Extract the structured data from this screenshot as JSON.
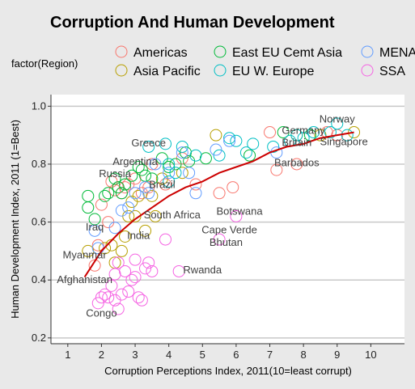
{
  "chart_data": {
    "type": "scatter",
    "title": "Corruption And Human Development",
    "xlabel": "Corruption Perceptions Index, 2011(10=least corrupt)",
    "ylabel": "Human Development Index, 2011 (1=Best)",
    "xlim": [
      0.5,
      11
    ],
    "ylim": [
      0.18,
      1.04
    ],
    "x_ticks": [
      1,
      2,
      3,
      4,
      5,
      6,
      7,
      8,
      9,
      10
    ],
    "y_ticks": [
      0.2,
      0.4,
      0.6,
      0.8,
      1.0
    ],
    "y_tick_labels": [
      "0.2",
      "0.4",
      "0.6",
      "0.8",
      "1.0"
    ],
    "grid": "horizontal",
    "legend": {
      "title": "factor(Region)",
      "placement": "top",
      "entries": [
        {
          "name": "Americas",
          "color": "#f8766d"
        },
        {
          "name": "Asia Pacific",
          "color": "#b79f00"
        },
        {
          "name": "East EU Cemt Asia",
          "color": "#00ba38"
        },
        {
          "name": "EU W. Europe",
          "color": "#00bfc4"
        },
        {
          "name": "MENA",
          "color": "#619cff"
        },
        {
          "name": "SSA",
          "color": "#f564e3"
        }
      ]
    },
    "trend_line": {
      "color": "#cc0000",
      "x": [
        1.5,
        2,
        2.5,
        3,
        3.5,
        4,
        4.5,
        5,
        5.5,
        6,
        6.5,
        7,
        7.5,
        8,
        8.5,
        9,
        9.5
      ],
      "y": [
        0.41,
        0.5,
        0.56,
        0.61,
        0.65,
        0.69,
        0.72,
        0.74,
        0.77,
        0.79,
        0.81,
        0.84,
        0.86,
        0.87,
        0.89,
        0.9,
        0.91
      ]
    },
    "series": [
      {
        "name": "Americas",
        "color": "#f8766d",
        "points": [
          [
            1.8,
            0.45
          ],
          [
            1.9,
            0.52
          ],
          [
            2.0,
            0.66
          ],
          [
            2.2,
            0.6
          ],
          [
            2.3,
            0.74
          ],
          [
            2.4,
            0.71
          ],
          [
            2.5,
            0.72
          ],
          [
            2.6,
            0.7
          ],
          [
            2.7,
            0.72
          ],
          [
            2.8,
            0.73
          ],
          [
            3.0,
            0.75
          ],
          [
            3.2,
            0.7
          ],
          [
            3.4,
            0.72
          ],
          [
            3.5,
            0.8
          ],
          [
            3.9,
            0.73
          ],
          [
            4.4,
            0.82
          ],
          [
            4.8,
            0.73
          ],
          [
            5.5,
            0.7
          ],
          [
            5.9,
            0.72
          ],
          [
            7.0,
            0.91
          ],
          [
            7.2,
            0.78
          ],
          [
            7.8,
            0.8
          ],
          [
            8.7,
            0.91
          ],
          [
            9.0,
            0.9
          ]
        ]
      },
      {
        "name": "Asia Pacific",
        "color": "#b79f00",
        "points": [
          [
            1.6,
            0.5
          ],
          [
            2.1,
            0.51
          ],
          [
            2.3,
            0.52
          ],
          [
            2.4,
            0.46
          ],
          [
            2.6,
            0.5
          ],
          [
            2.7,
            0.55
          ],
          [
            2.8,
            0.62
          ],
          [
            2.9,
            0.67
          ],
          [
            3.0,
            0.62
          ],
          [
            3.1,
            0.69
          ],
          [
            3.3,
            0.57
          ],
          [
            3.5,
            0.69
          ],
          [
            3.6,
            0.62
          ],
          [
            3.8,
            0.75
          ],
          [
            4.4,
            0.77
          ],
          [
            5.4,
            0.9
          ],
          [
            7.8,
            0.9
          ],
          [
            8.5,
            0.9
          ],
          [
            9.5,
            0.91
          ]
        ]
      },
      {
        "name": "East EU Cemt Asia",
        "color": "#00ba38",
        "points": [
          [
            1.6,
            0.65
          ],
          [
            1.6,
            0.69
          ],
          [
            1.8,
            0.61
          ],
          [
            2.1,
            0.69
          ],
          [
            2.2,
            0.7
          ],
          [
            2.4,
            0.75
          ],
          [
            2.5,
            0.72
          ],
          [
            2.6,
            0.7
          ],
          [
            2.7,
            0.73
          ],
          [
            2.9,
            0.76
          ],
          [
            3.1,
            0.79
          ],
          [
            3.2,
            0.78
          ],
          [
            3.3,
            0.76
          ],
          [
            3.5,
            0.75
          ],
          [
            3.8,
            0.82
          ],
          [
            4.0,
            0.79
          ],
          [
            4.2,
            0.8
          ],
          [
            4.5,
            0.84
          ],
          [
            4.6,
            0.81
          ],
          [
            5.1,
            0.82
          ],
          [
            6.4,
            0.83
          ],
          [
            7.4,
            0.91
          ],
          [
            8.2,
            0.9
          ]
        ]
      },
      {
        "name": "EU W. Europe",
        "color": "#00bfc4",
        "points": [
          [
            3.4,
            0.86
          ],
          [
            3.9,
            0.87
          ],
          [
            4.0,
            0.8
          ],
          [
            4.0,
            0.74
          ],
          [
            4.2,
            0.77
          ],
          [
            4.4,
            0.86
          ],
          [
            4.8,
            0.83
          ],
          [
            5.5,
            0.83
          ],
          [
            5.8,
            0.89
          ],
          [
            6.0,
            0.88
          ],
          [
            6.3,
            0.84
          ],
          [
            6.5,
            0.87
          ],
          [
            7.1,
            0.86
          ],
          [
            7.6,
            0.88
          ],
          [
            7.8,
            0.9
          ],
          [
            8.0,
            0.89
          ],
          [
            8.3,
            0.91
          ],
          [
            8.8,
            0.91
          ],
          [
            9.0,
            0.94
          ],
          [
            9.3,
            0.9
          ]
        ]
      },
      {
        "name": "MENA",
        "color": "#619cff",
        "points": [
          [
            1.8,
            0.57
          ],
          [
            1.9,
            0.51
          ],
          [
            2.4,
            0.58
          ],
          [
            2.6,
            0.64
          ],
          [
            2.8,
            0.65
          ],
          [
            3.0,
            0.7
          ],
          [
            3.3,
            0.72
          ],
          [
            3.4,
            0.7
          ],
          [
            3.6,
            0.8
          ],
          [
            4.0,
            0.77
          ],
          [
            4.4,
            0.84
          ],
          [
            4.6,
            0.77
          ],
          [
            4.8,
            0.7
          ],
          [
            5.4,
            0.85
          ],
          [
            5.8,
            0.88
          ],
          [
            7.2,
            0.84
          ]
        ]
      },
      {
        "name": "SSA",
        "color": "#f564e3",
        "points": [
          [
            1.9,
            0.32
          ],
          [
            2.0,
            0.34
          ],
          [
            2.1,
            0.35
          ],
          [
            2.2,
            0.34
          ],
          [
            2.3,
            0.38
          ],
          [
            2.4,
            0.42
          ],
          [
            2.4,
            0.33
          ],
          [
            2.5,
            0.46
          ],
          [
            2.5,
            0.3
          ],
          [
            2.6,
            0.35
          ],
          [
            2.7,
            0.43
          ],
          [
            2.8,
            0.36
          ],
          [
            2.9,
            0.4
          ],
          [
            3.0,
            0.47
          ],
          [
            3.0,
            0.41
          ],
          [
            3.1,
            0.34
          ],
          [
            3.2,
            0.33
          ],
          [
            3.3,
            0.44
          ],
          [
            3.4,
            0.46
          ],
          [
            3.5,
            0.43
          ],
          [
            3.9,
            0.54
          ],
          [
            4.3,
            0.43
          ],
          [
            5.5,
            0.54
          ],
          [
            6.0,
            0.62
          ]
        ]
      }
    ],
    "annotations": [
      {
        "text": "Norway",
        "x": 9.0,
        "y": 0.943
      },
      {
        "text": "Germany",
        "x": 8.0,
        "y": 0.905
      },
      {
        "text": "Britain",
        "x": 7.8,
        "y": 0.863
      },
      {
        "text": "Singapore",
        "x": 9.2,
        "y": 0.866
      },
      {
        "text": "Greece",
        "x": 3.4,
        "y": 0.861
      },
      {
        "text": "Barbados",
        "x": 7.8,
        "y": 0.793
      },
      {
        "text": "Argentina",
        "x": 3.0,
        "y": 0.797
      },
      {
        "text": "Russia",
        "x": 2.4,
        "y": 0.755
      },
      {
        "text": "Brazil",
        "x": 3.8,
        "y": 0.718
      },
      {
        "text": "Botswana",
        "x": 6.1,
        "y": 0.625
      },
      {
        "text": "South Africa",
        "x": 4.1,
        "y": 0.613
      },
      {
        "text": "Iraq",
        "x": 1.8,
        "y": 0.571
      },
      {
        "text": "Cape Verde",
        "x": 5.8,
        "y": 0.561
      },
      {
        "text": "India",
        "x": 3.1,
        "y": 0.541
      },
      {
        "text": "Bhutan",
        "x": 5.7,
        "y": 0.518
      },
      {
        "text": "Myanmar",
        "x": 1.5,
        "y": 0.475
      },
      {
        "text": "Rwanda",
        "x": 5.0,
        "y": 0.423
      },
      {
        "text": "Afghanistan",
        "x": 1.5,
        "y": 0.389
      },
      {
        "text": "Congo",
        "x": 2.0,
        "y": 0.273
      }
    ]
  }
}
